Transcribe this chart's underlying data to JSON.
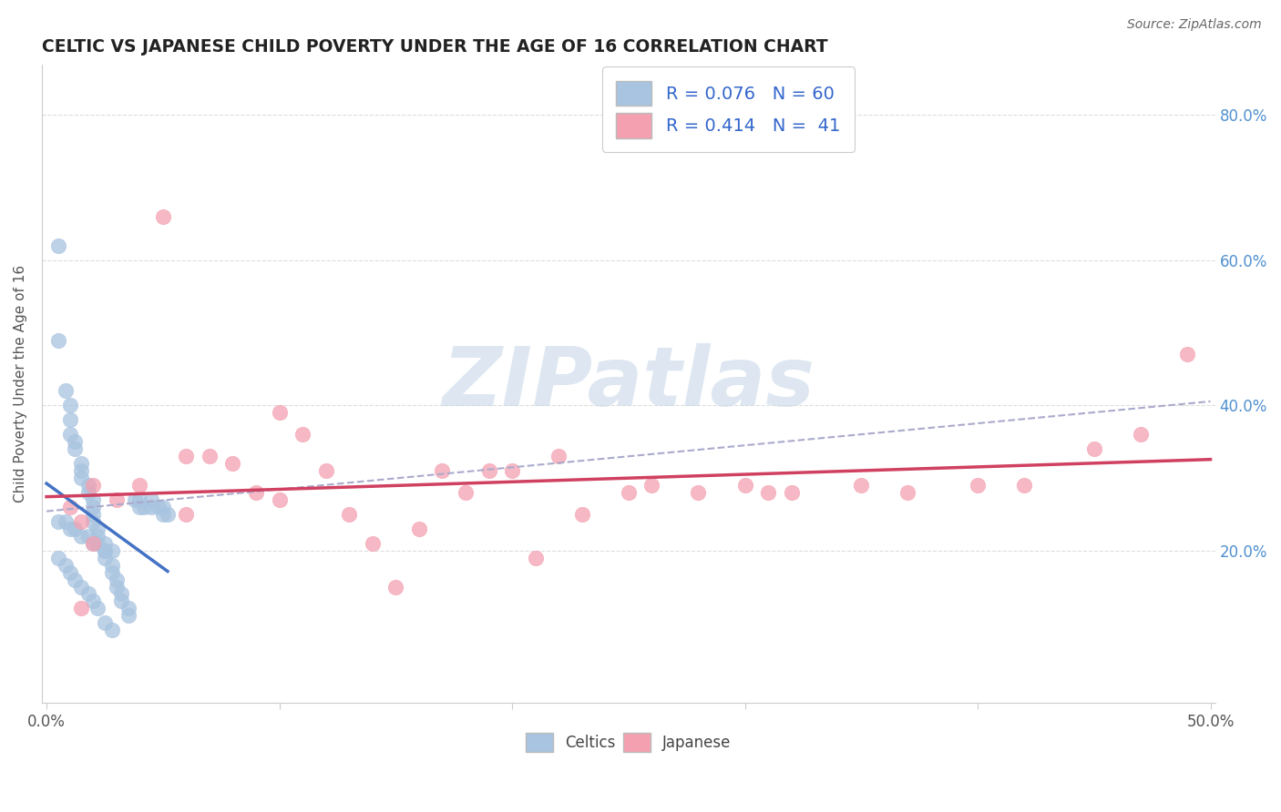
{
  "title": "CELTIC VS JAPANESE CHILD POVERTY UNDER THE AGE OF 16 CORRELATION CHART",
  "source": "Source: ZipAtlas.com",
  "ylabel": "Child Poverty Under the Age of 16",
  "xlim": [
    -0.002,
    0.502
  ],
  "ylim": [
    -0.01,
    0.87
  ],
  "xticks": [
    0.0,
    0.1,
    0.2,
    0.3,
    0.4,
    0.5
  ],
  "xtick_labels": [
    "0.0%",
    "",
    "",
    "",
    "",
    "50.0%"
  ],
  "yticks": [
    0.0,
    0.2,
    0.4,
    0.6,
    0.8
  ],
  "ytick_labels_right": [
    "",
    "20.0%",
    "40.0%",
    "60.0%",
    "80.0%"
  ],
  "celtic_R": 0.076,
  "celtic_N": 60,
  "japanese_R": 0.414,
  "japanese_N": 41,
  "celtic_color": "#a8c4e0",
  "japanese_color": "#f4a0b0",
  "celtic_line_color": "#4472c4",
  "japanese_line_color": "#d04060",
  "dashed_line_color": "#aaaacc",
  "watermark_color": "#c8d8e8",
  "legend_labels": [
    "Celtics",
    "Japanese"
  ],
  "celtic_scatter_x": [
    0.005,
    0.005,
    0.008,
    0.01,
    0.01,
    0.01,
    0.012,
    0.012,
    0.015,
    0.015,
    0.015,
    0.018,
    0.018,
    0.02,
    0.02,
    0.02,
    0.02,
    0.022,
    0.022,
    0.025,
    0.025,
    0.025,
    0.028,
    0.028,
    0.03,
    0.03,
    0.032,
    0.032,
    0.035,
    0.035,
    0.038,
    0.04,
    0.04,
    0.042,
    0.045,
    0.045,
    0.048,
    0.05,
    0.05,
    0.052,
    0.005,
    0.008,
    0.01,
    0.012,
    0.015,
    0.018,
    0.02,
    0.022,
    0.025,
    0.028,
    0.005,
    0.008,
    0.01,
    0.012,
    0.015,
    0.018,
    0.02,
    0.022,
    0.025,
    0.028
  ],
  "celtic_scatter_y": [
    0.62,
    0.49,
    0.42,
    0.4,
    0.38,
    0.36,
    0.35,
    0.34,
    0.32,
    0.31,
    0.3,
    0.29,
    0.28,
    0.27,
    0.26,
    0.25,
    0.24,
    0.23,
    0.22,
    0.21,
    0.2,
    0.19,
    0.18,
    0.17,
    0.16,
    0.15,
    0.14,
    0.13,
    0.12,
    0.11,
    0.27,
    0.27,
    0.26,
    0.26,
    0.27,
    0.26,
    0.26,
    0.26,
    0.25,
    0.25,
    0.24,
    0.24,
    0.23,
    0.23,
    0.22,
    0.22,
    0.21,
    0.21,
    0.2,
    0.2,
    0.19,
    0.18,
    0.17,
    0.16,
    0.15,
    0.14,
    0.13,
    0.12,
    0.1,
    0.09
  ],
  "japanese_scatter_x": [
    0.01,
    0.015,
    0.02,
    0.03,
    0.05,
    0.06,
    0.08,
    0.09,
    0.1,
    0.1,
    0.11,
    0.12,
    0.13,
    0.14,
    0.15,
    0.16,
    0.17,
    0.18,
    0.19,
    0.2,
    0.21,
    0.22,
    0.23,
    0.25,
    0.26,
    0.28,
    0.3,
    0.31,
    0.32,
    0.35,
    0.37,
    0.4,
    0.42,
    0.45,
    0.47,
    0.49,
    0.02,
    0.04,
    0.06,
    0.07,
    0.015
  ],
  "japanese_scatter_y": [
    0.26,
    0.24,
    0.21,
    0.27,
    0.66,
    0.33,
    0.32,
    0.28,
    0.39,
    0.27,
    0.36,
    0.31,
    0.25,
    0.21,
    0.15,
    0.23,
    0.31,
    0.28,
    0.31,
    0.31,
    0.19,
    0.33,
    0.25,
    0.28,
    0.29,
    0.28,
    0.29,
    0.28,
    0.28,
    0.29,
    0.28,
    0.29,
    0.29,
    0.34,
    0.36,
    0.47,
    0.29,
    0.29,
    0.25,
    0.33,
    0.12
  ]
}
